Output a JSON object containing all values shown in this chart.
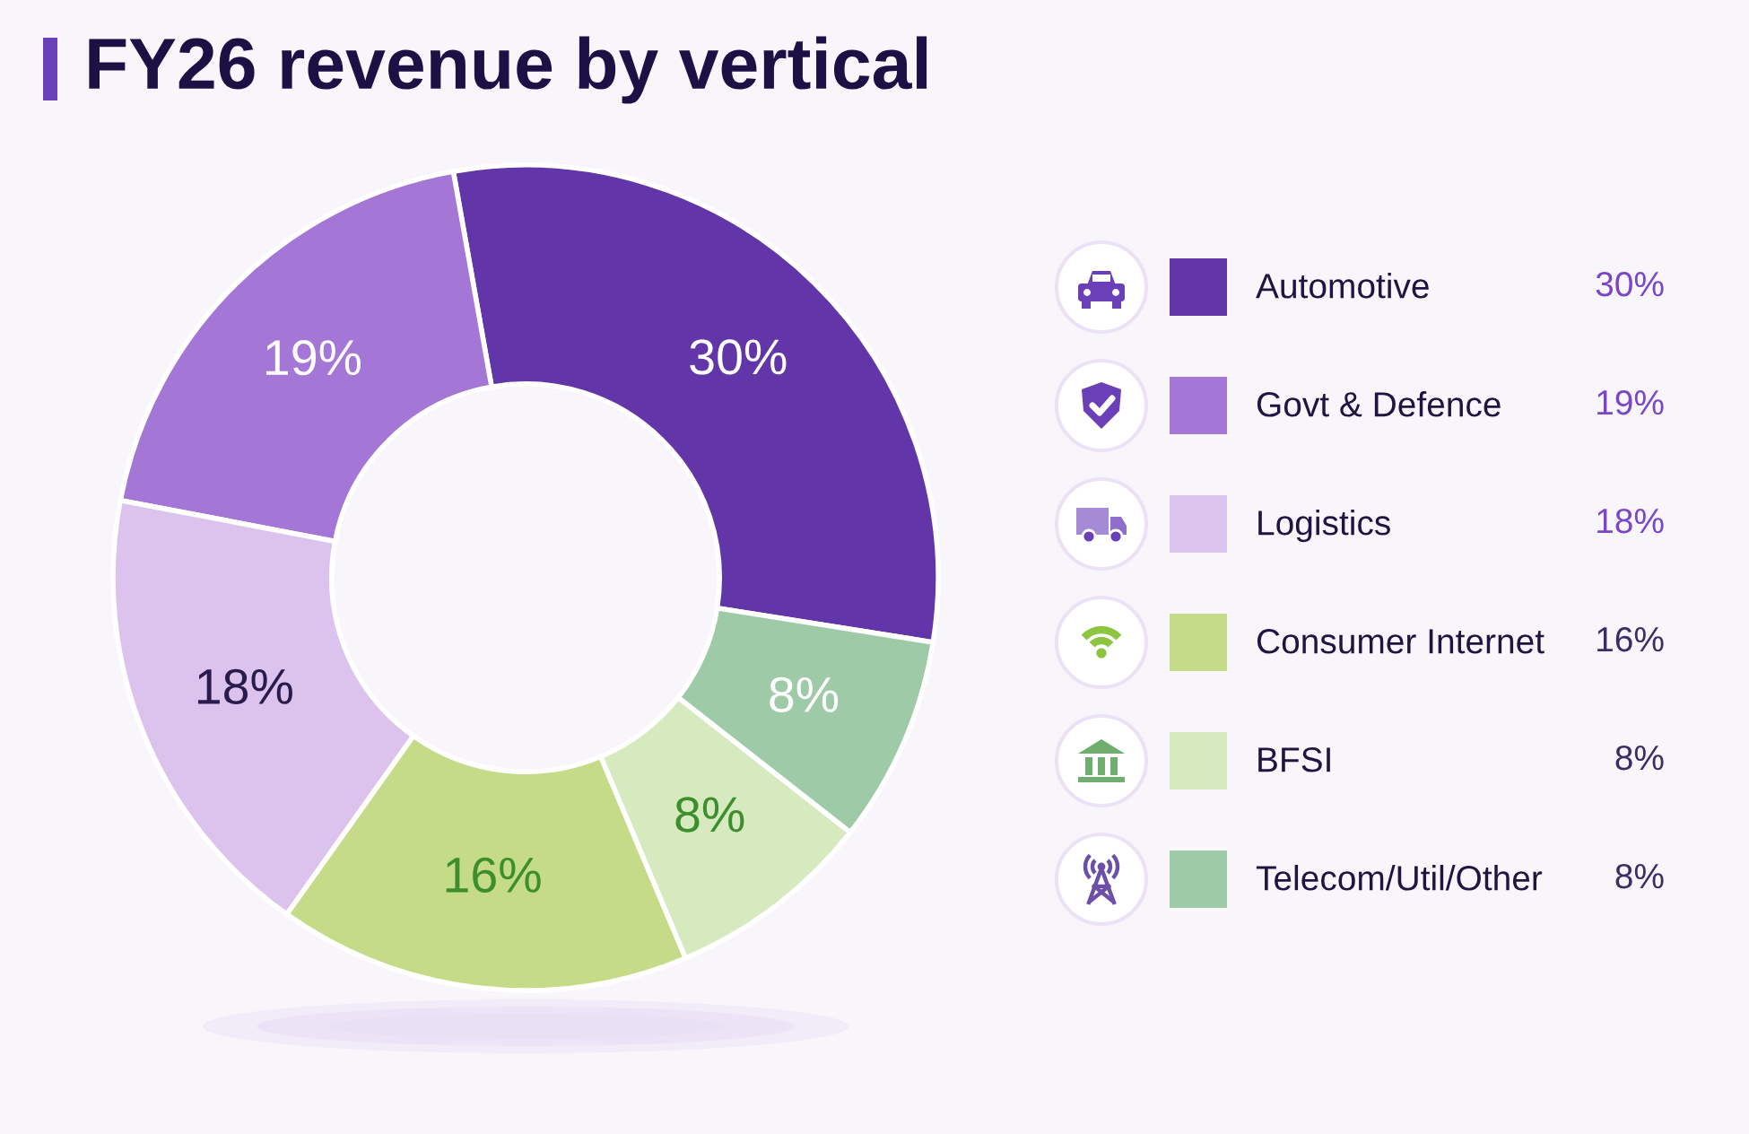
{
  "chart_data": {
    "type": "donut",
    "title": "FY26 revenue by vertical",
    "categories": [
      "Automotive",
      "Govt & Defence",
      "Logistics",
      "Consumer Internet",
      "BFSI",
      "Telecom/Util/Other"
    ],
    "values": [
      30,
      19,
      18,
      16,
      8,
      8
    ],
    "value_labels": [
      "30%",
      "19%",
      "18%",
      "16%",
      "8%",
      "8%"
    ],
    "colors": [
      "#6236a8",
      "#a477d6",
      "#dbc3ee",
      "#c5db88",
      "#d7e9bf",
      "#9fcaa8"
    ],
    "legend": "right"
  }
}
